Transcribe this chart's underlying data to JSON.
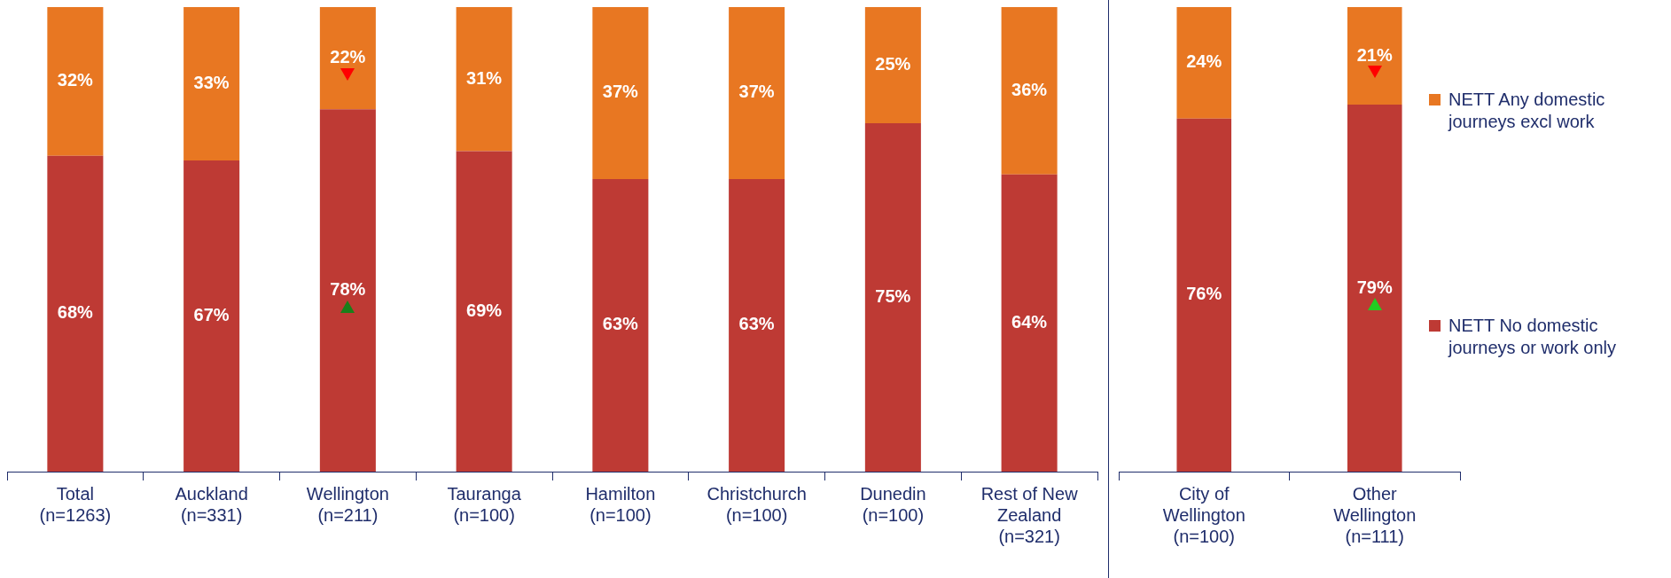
{
  "chart_data": [
    {
      "type": "bar",
      "stacked": true,
      "legend": false,
      "categories": [
        "Total\n(n=1263)",
        "Auckland\n(n=331)",
        "Wellington\n(n=211)",
        "Tauranga\n(n=100)",
        "Hamilton\n(n=100)",
        "Christchurch\n(n=100)",
        "Dunedin\n(n=100)",
        "Rest of New\nZealand\n(n=321)"
      ],
      "series": [
        {
          "color": "#be3a34",
          "values": [
            68,
            67,
            78,
            69,
            63,
            63,
            75,
            64
          ],
          "value_labels": [
            "68%",
            "67%",
            "78%",
            "69%",
            "63%",
            "63%",
            "75%",
            "64%"
          ]
        },
        {
          "color": "#e87722",
          "values": [
            32,
            33,
            22,
            31,
            37,
            37,
            25,
            36
          ],
          "value_labels": [
            "32%",
            "33%",
            "22%",
            "31%",
            "37%",
            "37%",
            "25%",
            "36%"
          ]
        }
      ]
    },
    {
      "type": "bar",
      "stacked": true,
      "legend": "right",
      "categories": [
        "City of\nWellington\n(n=100)",
        "Other\nWellington\n(n=111)"
      ],
      "series": [
        {
          "name": "NETT No domestic journeys or work only",
          "color": "#be3a34",
          "values": [
            76,
            79
          ],
          "value_labels": [
            "76%",
            "79%"
          ]
        },
        {
          "name": "NETT Any domestic journeys excl work",
          "color": "#e87722",
          "values": [
            24,
            21
          ],
          "value_labels": [
            "24%",
            "21%"
          ]
        }
      ]
    }
  ]
}
